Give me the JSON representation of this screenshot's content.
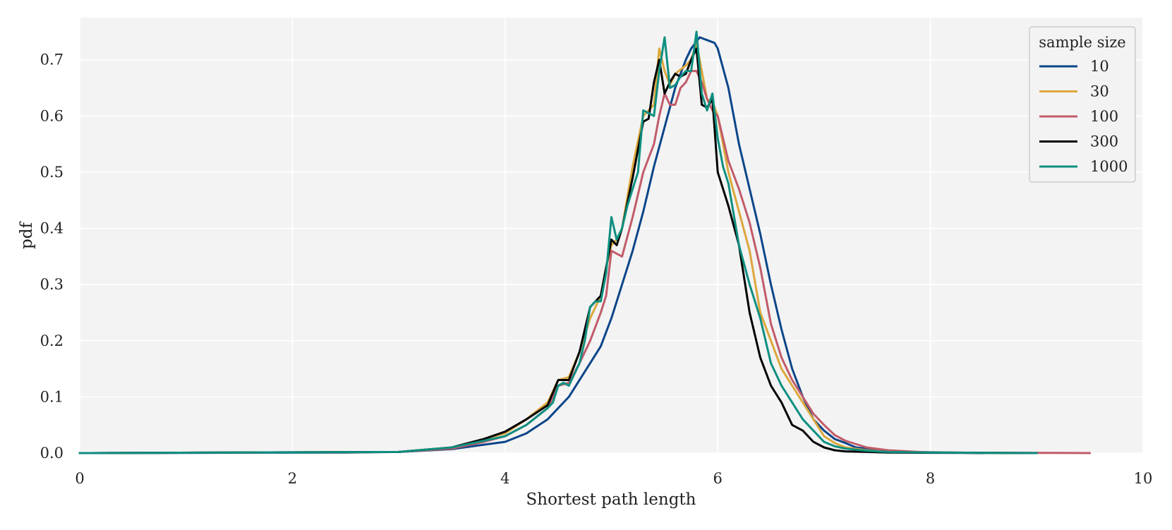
{
  "chart_data": {
    "type": "line",
    "title": "",
    "xlabel": "Shortest path length",
    "ylabel": "pdf",
    "xlim": [
      0,
      10
    ],
    "ylim": [
      0,
      0.775
    ],
    "xticks": [
      0,
      2,
      4,
      6,
      8,
      10
    ],
    "xtick_labels": [
      "0",
      "2",
      "4",
      "6",
      "8",
      "10"
    ],
    "yticks": [
      0.0,
      0.1,
      0.2,
      0.3,
      0.4,
      0.5,
      0.6,
      0.7
    ],
    "ytick_labels": [
      "0.0",
      "0.1",
      "0.2",
      "0.3",
      "0.4",
      "0.5",
      "0.6",
      "0.7"
    ],
    "grid": true,
    "legend": {
      "title": "sample size",
      "position": "top-right"
    },
    "series": [
      {
        "name": "10",
        "color": "#0b4589",
        "x": [
          0,
          2.5,
          3.0,
          3.5,
          3.8,
          4.0,
          4.2,
          4.4,
          4.6,
          4.8,
          4.9,
          5.0,
          5.1,
          5.2,
          5.3,
          5.4,
          5.5,
          5.6,
          5.7,
          5.75,
          5.83,
          5.9,
          5.97,
          6.0,
          6.1,
          6.2,
          6.3,
          6.4,
          6.5,
          6.6,
          6.7,
          6.8,
          6.9,
          7.0,
          7.1,
          7.2,
          7.3,
          7.5,
          7.8,
          8.2,
          8.5
        ],
        "y": [
          0,
          0.001,
          0.002,
          0.007,
          0.015,
          0.02,
          0.035,
          0.06,
          0.1,
          0.16,
          0.19,
          0.24,
          0.3,
          0.36,
          0.43,
          0.51,
          0.58,
          0.65,
          0.7,
          0.72,
          0.74,
          0.735,
          0.73,
          0.72,
          0.65,
          0.55,
          0.47,
          0.39,
          0.3,
          0.22,
          0.15,
          0.1,
          0.06,
          0.04,
          0.025,
          0.018,
          0.01,
          0.005,
          0.002,
          0.001,
          0
        ]
      },
      {
        "name": "30",
        "color": "#dca73c",
        "x": [
          0,
          3.0,
          3.5,
          3.8,
          4.0,
          4.2,
          4.4,
          4.5,
          4.6,
          4.7,
          4.8,
          4.9,
          4.95,
          5.0,
          5.05,
          5.1,
          5.2,
          5.3,
          5.4,
          5.45,
          5.5,
          5.55,
          5.6,
          5.7,
          5.75,
          5.8,
          5.85,
          5.9,
          5.95,
          6.0,
          6.1,
          6.2,
          6.3,
          6.4,
          6.5,
          6.6,
          6.7,
          6.8,
          6.9,
          7.0,
          7.1,
          7.2,
          7.4,
          7.6,
          8.0,
          9.0
        ],
        "y": [
          0,
          0.002,
          0.01,
          0.025,
          0.035,
          0.06,
          0.09,
          0.13,
          0.135,
          0.18,
          0.24,
          0.28,
          0.33,
          0.37,
          0.38,
          0.4,
          0.51,
          0.6,
          0.62,
          0.72,
          0.68,
          0.655,
          0.675,
          0.69,
          0.7,
          0.73,
          0.68,
          0.63,
          0.625,
          0.6,
          0.5,
          0.43,
          0.36,
          0.25,
          0.2,
          0.15,
          0.12,
          0.09,
          0.06,
          0.03,
          0.018,
          0.01,
          0.005,
          0.002,
          0.001,
          0
        ]
      },
      {
        "name": "100",
        "color": "#c15b6a",
        "x": [
          0,
          3.0,
          3.5,
          3.8,
          4.0,
          4.2,
          4.4,
          4.5,
          4.6,
          4.7,
          4.8,
          4.9,
          4.95,
          5.0,
          5.1,
          5.2,
          5.3,
          5.4,
          5.45,
          5.5,
          5.55,
          5.6,
          5.65,
          5.7,
          5.75,
          5.8,
          5.85,
          5.9,
          5.95,
          6.0,
          6.1,
          6.2,
          6.3,
          6.4,
          6.5,
          6.6,
          6.7,
          6.8,
          6.9,
          7.0,
          7.1,
          7.2,
          7.4,
          7.6,
          8.0,
          9.5
        ],
        "y": [
          0,
          0.002,
          0.008,
          0.02,
          0.03,
          0.05,
          0.08,
          0.12,
          0.125,
          0.16,
          0.2,
          0.25,
          0.28,
          0.36,
          0.35,
          0.42,
          0.5,
          0.55,
          0.6,
          0.64,
          0.62,
          0.62,
          0.65,
          0.66,
          0.68,
          0.68,
          0.66,
          0.63,
          0.61,
          0.6,
          0.52,
          0.47,
          0.41,
          0.33,
          0.23,
          0.17,
          0.13,
          0.1,
          0.07,
          0.05,
          0.032,
          0.022,
          0.01,
          0.005,
          0.001,
          0
        ]
      },
      {
        "name": "300",
        "color": "#000000",
        "x": [
          0,
          3.0,
          3.5,
          3.8,
          4.0,
          4.2,
          4.4,
          4.5,
          4.6,
          4.7,
          4.8,
          4.9,
          5.0,
          5.05,
          5.1,
          5.2,
          5.3,
          5.35,
          5.4,
          5.45,
          5.5,
          5.55,
          5.6,
          5.65,
          5.7,
          5.75,
          5.8,
          5.85,
          5.9,
          5.95,
          6.0,
          6.1,
          6.2,
          6.3,
          6.4,
          6.5,
          6.6,
          6.7,
          6.8,
          6.9,
          7.0,
          7.1,
          7.2,
          7.4,
          7.6,
          8.0,
          9.0
        ],
        "y": [
          0,
          0.002,
          0.01,
          0.025,
          0.038,
          0.06,
          0.085,
          0.13,
          0.13,
          0.18,
          0.26,
          0.28,
          0.38,
          0.37,
          0.4,
          0.49,
          0.59,
          0.595,
          0.66,
          0.7,
          0.64,
          0.66,
          0.675,
          0.67,
          0.675,
          0.7,
          0.72,
          0.62,
          0.615,
          0.63,
          0.5,
          0.44,
          0.37,
          0.25,
          0.17,
          0.12,
          0.09,
          0.05,
          0.04,
          0.02,
          0.01,
          0.005,
          0.003,
          0.002,
          0.001,
          0.0005,
          0
        ]
      },
      {
        "name": "1000",
        "color": "#0e8f80",
        "x": [
          0,
          3.0,
          3.5,
          3.8,
          4.0,
          4.2,
          4.4,
          4.45,
          4.5,
          4.55,
          4.6,
          4.7,
          4.75,
          4.8,
          4.85,
          4.9,
          4.95,
          5.0,
          5.05,
          5.1,
          5.15,
          5.2,
          5.25,
          5.3,
          5.35,
          5.4,
          5.45,
          5.5,
          5.55,
          5.6,
          5.65,
          5.7,
          5.75,
          5.8,
          5.85,
          5.9,
          5.95,
          6.0,
          6.05,
          6.1,
          6.2,
          6.3,
          6.4,
          6.5,
          6.6,
          6.7,
          6.8,
          6.9,
          7.0,
          7.1,
          7.2,
          7.4,
          7.6,
          8.0,
          8.5,
          9.0
        ],
        "y": [
          0,
          0.002,
          0.01,
          0.022,
          0.03,
          0.05,
          0.08,
          0.09,
          0.12,
          0.125,
          0.12,
          0.16,
          0.2,
          0.26,
          0.27,
          0.27,
          0.32,
          0.42,
          0.38,
          0.4,
          0.44,
          0.47,
          0.5,
          0.61,
          0.605,
          0.6,
          0.68,
          0.74,
          0.65,
          0.655,
          0.67,
          0.68,
          0.68,
          0.75,
          0.64,
          0.61,
          0.64,
          0.56,
          0.51,
          0.48,
          0.37,
          0.3,
          0.24,
          0.16,
          0.12,
          0.09,
          0.06,
          0.04,
          0.02,
          0.012,
          0.008,
          0.004,
          0.002,
          0.001,
          0.0005,
          0
        ]
      }
    ]
  }
}
